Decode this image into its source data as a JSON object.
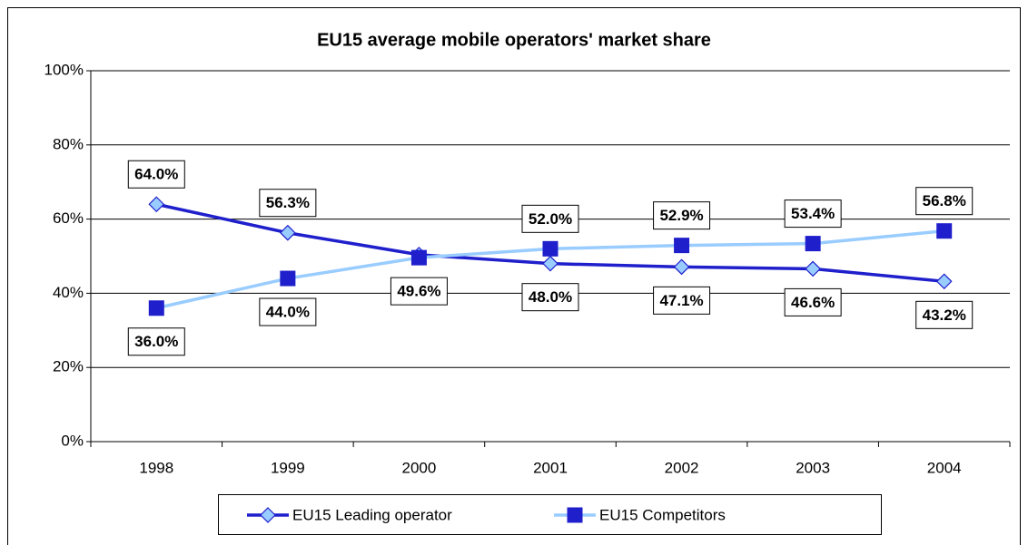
{
  "chart_data": {
    "type": "line",
    "title": "EU15 average mobile operators' market share",
    "categories": [
      "1998",
      "1999",
      "2000",
      "2001",
      "2002",
      "2003",
      "2004"
    ],
    "series": [
      {
        "name": "EU15 Leading operator",
        "color": "#1f1fcc",
        "marker": "diamond",
        "marker_color": "#99ccff",
        "values": [
          64.0,
          56.3,
          50.4,
          48.0,
          47.1,
          46.6,
          43.2
        ],
        "value_labels": [
          "64.0%",
          "56.3%",
          null,
          "48.0%",
          "47.1%",
          "46.6%",
          "43.2%"
        ]
      },
      {
        "name": "EU15 Competitors",
        "color": "#99ccff",
        "marker": "square",
        "marker_color": "#1f1fcc",
        "values": [
          36.0,
          44.0,
          49.6,
          52.0,
          52.9,
          53.4,
          56.8
        ],
        "value_labels": [
          "36.0%",
          "44.0%",
          "49.6%",
          "52.0%",
          "52.9%",
          "53.4%",
          "56.8%"
        ]
      }
    ],
    "ylim": [
      0,
      100
    ],
    "yticks": [
      {
        "value": 0,
        "label": "0%"
      },
      {
        "value": 20,
        "label": "20%"
      },
      {
        "value": 40,
        "label": "40%"
      },
      {
        "value": 60,
        "label": "60%"
      },
      {
        "value": 80,
        "label": "80%"
      },
      {
        "value": 100,
        "label": "100%"
      }
    ],
    "grid": true,
    "legend": "bottom"
  }
}
